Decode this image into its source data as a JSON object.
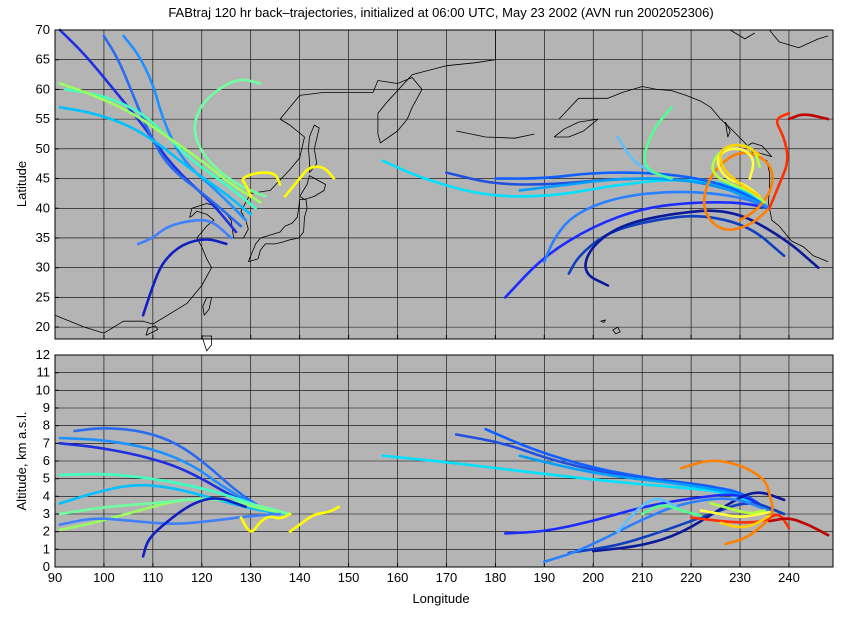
{
  "chart_data": [
    {
      "type": "line",
      "panel": "map",
      "title": "FABtraj 120 hr back–trajectories, initialized at 06:00 UTC, May 23 2002 (AVN run 2002052306)",
      "xlabel": "",
      "ylabel": "Latitude",
      "xlim": [
        90,
        249
      ],
      "ylim": [
        18,
        70
      ],
      "xticks": [
        90,
        100,
        110,
        120,
        130,
        140,
        150,
        160,
        170,
        180,
        190,
        200,
        210,
        220,
        230,
        240
      ],
      "yticks": [
        20,
        25,
        30,
        35,
        40,
        45,
        50,
        55,
        60,
        65,
        70
      ],
      "grid": true,
      "background": "#b4b4b4",
      "coastline_color": "#000000",
      "series": [
        {
          "color": "#1f30e0",
          "x": [
            127,
            122,
            114,
            108,
            102,
            96,
            91
          ],
          "y": [
            36,
            41,
            47,
            54,
            60,
            66,
            70
          ]
        },
        {
          "color": "#2a6cf0",
          "x": [
            128,
            121,
            113,
            109,
            106,
            103,
            100
          ],
          "y": [
            37,
            42,
            47,
            53,
            59,
            65,
            69
          ]
        },
        {
          "color": "#1e90ff",
          "x": [
            129,
            123,
            116,
            112,
            110,
            107,
            104
          ],
          "y": [
            38,
            43,
            48,
            55,
            61,
            66,
            69
          ]
        },
        {
          "color": "#00c0ff",
          "x": [
            130,
            124,
            117,
            111,
            105,
            98,
            91
          ],
          "y": [
            39,
            43,
            47,
            51,
            54,
            56,
            57
          ]
        },
        {
          "color": "#40ffc0",
          "x": [
            131,
            125,
            118,
            113,
            108,
            100,
            92
          ],
          "y": [
            40,
            44,
            48,
            52,
            56,
            59,
            60
          ]
        },
        {
          "color": "#9aff60",
          "x": [
            132,
            126,
            120,
            113,
            106,
            98,
            91
          ],
          "y": [
            41,
            44,
            48,
            52,
            56,
            59,
            61
          ]
        },
        {
          "color": "#70ffa0",
          "x": [
            133,
            127,
            121,
            118,
            120,
            127,
            132
          ],
          "y": [
            42,
            44,
            48,
            53,
            58,
            62,
            61
          ]
        },
        {
          "color": "#4080ff",
          "x": [
            126,
            122,
            118,
            113,
            110,
            107
          ],
          "y": [
            35,
            38,
            38,
            37,
            35,
            34
          ]
        },
        {
          "color": "#1020c0",
          "x": [
            125,
            121,
            116,
            112,
            110,
            108
          ],
          "y": [
            34,
            35,
            34,
            31,
            27,
            22
          ]
        },
        {
          "color": "#ffff00",
          "x": [
            130,
            129,
            128,
            131,
            135,
            136
          ],
          "y": [
            42,
            44,
            45,
            46,
            46,
            44
          ]
        },
        {
          "color": "#ffff00",
          "x": [
            137,
            140,
            142,
            145,
            147
          ],
          "y": [
            42,
            45,
            47,
            47,
            45
          ]
        },
        {
          "color": "#00e0ff",
          "x": [
            157,
            165,
            178,
            192,
            205,
            218,
            229,
            236
          ],
          "y": [
            48,
            45,
            42,
            42,
            44,
            45,
            44,
            40
          ]
        },
        {
          "color": "#2050e0",
          "x": [
            170,
            180,
            192,
            205,
            218,
            229,
            236
          ],
          "y": [
            46,
            44,
            44,
            45,
            45,
            43,
            40
          ]
        },
        {
          "color": "#1060ff",
          "x": [
            180,
            190,
            200,
            212,
            222,
            230,
            236
          ],
          "y": [
            45,
            45,
            46,
            46,
            45,
            43,
            40
          ]
        },
        {
          "color": "#00a0ff",
          "x": [
            185,
            195,
            205,
            215,
            225,
            231,
            236
          ],
          "y": [
            43,
            44,
            45,
            45,
            44,
            42,
            40
          ]
        },
        {
          "color": "#1c2cff",
          "x": [
            182,
            190,
            200,
            210,
            220,
            230,
            236
          ],
          "y": [
            25,
            32,
            37,
            40,
            41,
            41,
            40
          ]
        },
        {
          "color": "#1040c0",
          "x": [
            195,
            197,
            203,
            212,
            222,
            232,
            239
          ],
          "y": [
            29,
            32,
            36,
            38,
            39,
            37,
            32
          ]
        },
        {
          "color": "#0a1a9a",
          "x": [
            203,
            198,
            199,
            205,
            215,
            228,
            239,
            246
          ],
          "y": [
            27,
            29,
            33,
            37,
            39,
            40,
            35,
            30
          ]
        },
        {
          "color": "#2a80ff",
          "x": [
            190,
            192,
            196,
            205,
            218,
            230,
            236
          ],
          "y": [
            31,
            35,
            39,
            42,
            43,
            42,
            40
          ]
        },
        {
          "color": "#60c0ff",
          "x": [
            205,
            208,
            212,
            216
          ],
          "y": [
            52,
            48,
            46,
            45
          ]
        },
        {
          "color": "#50ff90",
          "x": [
            216,
            212,
            210,
            212,
            216
          ],
          "y": [
            57,
            53,
            48,
            46,
            45
          ]
        },
        {
          "color": "#ff8000",
          "x": [
            236,
            232,
            226,
            222,
            224,
            230,
            236,
            237,
            234,
            230
          ],
          "y": [
            40,
            37,
            36,
            40,
            46,
            50,
            48,
            44,
            40,
            38
          ]
        },
        {
          "color": "#ff3000",
          "x": [
            236,
            238,
            240,
            239,
            237,
            240
          ],
          "y": [
            40,
            44,
            48,
            52,
            55,
            56
          ]
        },
        {
          "color": "#c00000",
          "x": [
            240,
            243,
            248
          ],
          "y": [
            55,
            56,
            55
          ]
        },
        {
          "color": "#ffff40",
          "x": [
            234,
            231,
            227,
            225,
            227,
            231,
            233,
            232
          ],
          "y": [
            42,
            44,
            45,
            48,
            50,
            50,
            48,
            45
          ]
        },
        {
          "color": "#b0ff40",
          "x": [
            235,
            232,
            228,
            224,
            225,
            229,
            233,
            234
          ],
          "y": [
            41,
            43,
            44,
            46,
            49,
            51,
            50,
            47
          ]
        },
        {
          "color": "#ffd000",
          "x": [
            234,
            230,
            226,
            226,
            230,
            234
          ],
          "y": [
            42,
            44,
            47,
            50,
            51,
            49
          ]
        }
      ]
    },
    {
      "type": "line",
      "panel": "altitude",
      "title": "",
      "xlabel": "Longitude",
      "ylabel": "Altitude, km a.s.l.",
      "xlim": [
        90,
        249
      ],
      "ylim": [
        0,
        12
      ],
      "xticks": [
        90,
        100,
        110,
        120,
        130,
        140,
        150,
        160,
        170,
        180,
        190,
        200,
        210,
        220,
        230,
        240
      ],
      "xticklabels": [
        "90",
        "100",
        "110",
        "120",
        "130",
        "140",
        "150",
        "160",
        "170",
        "180",
        "190",
        "200",
        "210",
        "220",
        "230",
        "240"
      ],
      "yticks": [
        0,
        1,
        2,
        3,
        4,
        5,
        6,
        7,
        8,
        9,
        10,
        11,
        12
      ],
      "grid": true,
      "background": "#b4b4b4",
      "series": [
        {
          "color": "#1f30e0",
          "x": [
            91,
            98,
            106,
            114,
            120,
            125,
            130,
            135
          ],
          "y": [
            7.0,
            6.8,
            6.4,
            5.8,
            5.0,
            4.2,
            3.5,
            3.0
          ]
        },
        {
          "color": "#2a6cf0",
          "x": [
            94,
            100,
            108,
            115,
            121,
            127,
            133
          ],
          "y": [
            7.7,
            7.9,
            7.7,
            7.0,
            5.8,
            4.3,
            3.2
          ]
        },
        {
          "color": "#1e90ff",
          "x": [
            91,
            100,
            110,
            118,
            124,
            130,
            135
          ],
          "y": [
            7.3,
            7.2,
            6.7,
            5.8,
            4.6,
            3.6,
            3.1
          ]
        },
        {
          "color": "#00c0ff",
          "x": [
            91,
            98,
            106,
            114,
            122,
            130,
            137
          ],
          "y": [
            3.6,
            4.2,
            4.7,
            4.5,
            3.9,
            3.3,
            3.0
          ]
        },
        {
          "color": "#40ffc0",
          "x": [
            91,
            100,
            110,
            118,
            126,
            133,
            138
          ],
          "y": [
            5.2,
            5.3,
            5.0,
            4.6,
            4.0,
            3.3,
            3.0
          ]
        },
        {
          "color": "#9aff60",
          "x": [
            91,
            98,
            106,
            115,
            124,
            132,
            138
          ],
          "y": [
            2.1,
            2.5,
            3.1,
            3.8,
            3.9,
            3.3,
            3.0
          ]
        },
        {
          "color": "#70ffa0",
          "x": [
            91,
            100,
            110,
            120,
            128,
            134,
            138
          ],
          "y": [
            3.0,
            3.4,
            3.6,
            3.9,
            3.7,
            3.3,
            3.0
          ]
        },
        {
          "color": "#4080ff",
          "x": [
            91,
            98,
            106,
            114,
            122,
            130,
            136
          ],
          "y": [
            2.4,
            2.8,
            2.6,
            2.4,
            2.6,
            2.9,
            3.0
          ]
        },
        {
          "color": "#1020c0",
          "x": [
            108,
            109,
            113,
            118,
            123,
            129
          ],
          "y": [
            0.6,
            1.6,
            2.6,
            3.6,
            4.0,
            3.4
          ]
        },
        {
          "color": "#ffff00",
          "x": [
            128,
            130,
            132,
            134,
            136,
            138
          ],
          "y": [
            2.8,
            1.8,
            2.6,
            2.9,
            2.7,
            3.0
          ]
        },
        {
          "color": "#ffff00",
          "x": [
            138,
            140,
            143,
            146,
            148
          ],
          "y": [
            2.0,
            2.4,
            3.0,
            3.1,
            3.4
          ]
        },
        {
          "color": "#00e0ff",
          "x": [
            157,
            168,
            180,
            192,
            205,
            218,
            228,
            236
          ],
          "y": [
            6.3,
            6.0,
            5.6,
            5.2,
            4.8,
            4.5,
            4.2,
            3.2
          ]
        },
        {
          "color": "#2050e0",
          "x": [
            172,
            182,
            192,
            205,
            218,
            228,
            236
          ],
          "y": [
            7.5,
            7.0,
            6.0,
            5.2,
            4.8,
            4.4,
            3.2
          ]
        },
        {
          "color": "#1060ff",
          "x": [
            178,
            188,
            200,
            212,
            222,
            230,
            236
          ],
          "y": [
            7.8,
            6.6,
            5.6,
            5.0,
            4.6,
            4.3,
            3.2
          ]
        },
        {
          "color": "#00a0ff",
          "x": [
            185,
            195,
            205,
            215,
            225,
            231,
            236
          ],
          "y": [
            6.3,
            5.6,
            5.1,
            4.8,
            4.4,
            4.0,
            3.2
          ]
        },
        {
          "color": "#1c2cff",
          "x": [
            182,
            190,
            200,
            210,
            220,
            230,
            236
          ],
          "y": [
            1.9,
            2.0,
            2.6,
            3.4,
            3.9,
            4.2,
            3.2
          ]
        },
        {
          "color": "#1040c0",
          "x": [
            195,
            200,
            206,
            214,
            224,
            232,
            239
          ],
          "y": [
            0.8,
            1.0,
            1.3,
            2.0,
            3.0,
            3.8,
            3.0
          ]
        },
        {
          "color": "#0a1a9a",
          "x": [
            200,
            210,
            218,
            226,
            233,
            239
          ],
          "y": [
            0.9,
            1.2,
            1.9,
            3.3,
            4.4,
            3.8
          ]
        },
        {
          "color": "#2a80ff",
          "x": [
            190,
            196,
            203,
            210,
            218,
            228,
            236
          ],
          "y": [
            0.3,
            0.8,
            1.7,
            2.7,
            3.6,
            4.0,
            3.2
          ]
        },
        {
          "color": "#60c0ff",
          "x": [
            205,
            209,
            213,
            217
          ],
          "y": [
            2.0,
            3.3,
            4.0,
            3.4
          ]
        },
        {
          "color": "#50ff90",
          "x": [
            210,
            214,
            218,
            222
          ],
          "y": [
            3.0,
            3.6,
            3.2,
            2.9
          ]
        },
        {
          "color": "#ff8000",
          "x": [
            218,
            224,
            230,
            235,
            236,
            237,
            234,
            231,
            227
          ],
          "y": [
            5.6,
            6.1,
            5.8,
            5.0,
            4.2,
            3.0,
            2.2,
            1.6,
            1.3
          ]
        },
        {
          "color": "#ff3000",
          "x": [
            220,
            226,
            231,
            235,
            238,
            240
          ],
          "y": [
            2.8,
            2.6,
            2.5,
            2.6,
            3.1,
            2.2
          ]
        },
        {
          "color": "#c00000",
          "x": [
            236,
            240,
            244,
            248
          ],
          "y": [
            2.6,
            2.8,
            2.4,
            1.8
          ]
        },
        {
          "color": "#ffff40",
          "x": [
            222,
            226,
            230,
            234,
            236
          ],
          "y": [
            3.2,
            3.0,
            2.8,
            3.0,
            3.1
          ]
        },
        {
          "color": "#b0ff40",
          "x": [
            224,
            228,
            232,
            235
          ],
          "y": [
            3.6,
            3.3,
            3.0,
            3.2
          ]
        },
        {
          "color": "#ffd000",
          "x": [
            226,
            230,
            233,
            236
          ],
          "y": [
            2.5,
            2.2,
            2.4,
            2.9
          ]
        }
      ]
    }
  ]
}
